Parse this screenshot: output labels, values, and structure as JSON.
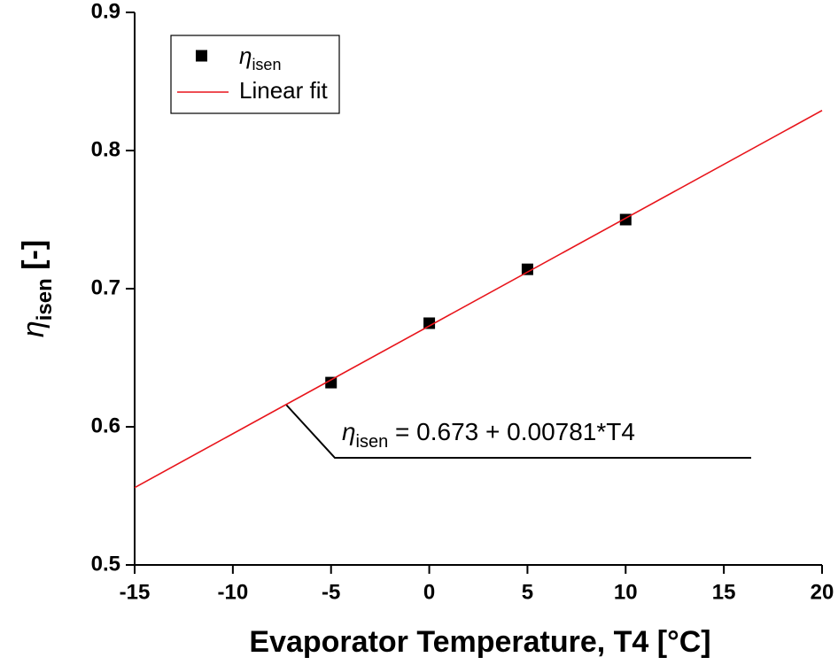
{
  "chart_data": {
    "type": "scatter",
    "xlabel": "Evaporator Temperature, T4 [°C]",
    "ylabel": [
      "η",
      "isen",
      " [-]"
    ],
    "xlim": [
      -15,
      20
    ],
    "xticks": [
      -15,
      -10,
      -5,
      0,
      5,
      10,
      15,
      20
    ],
    "ylim": [
      0.5,
      0.9
    ],
    "yticks": [
      0.5,
      0.6,
      0.7,
      0.8,
      0.9
    ],
    "series": [
      {
        "name": [
          "η",
          "isen"
        ],
        "color": "#000000",
        "mode": "markers",
        "x": [
          -5,
          0,
          5,
          10
        ],
        "values": [
          0.632,
          0.675,
          0.714,
          0.75
        ]
      },
      {
        "name": [
          "Linear fit"
        ],
        "color": "#e8141b",
        "mode": "line",
        "x": [
          -15,
          20
        ],
        "values": [
          0.556,
          0.829
        ]
      }
    ],
    "annotation": [
      "η",
      "isen",
      " = 0.673 + 0.00781*T4"
    ],
    "legend": "upper left"
  }
}
